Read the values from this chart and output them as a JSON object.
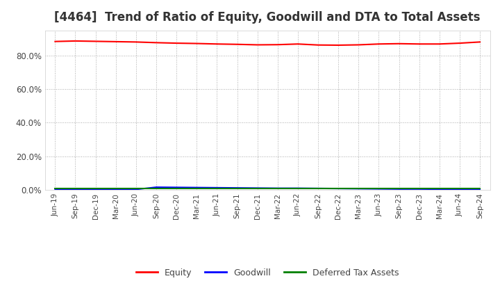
{
  "title": "[4464]  Trend of Ratio of Equity, Goodwill and DTA to Total Assets",
  "x_labels": [
    "Jun-19",
    "Sep-19",
    "Dec-19",
    "Mar-20",
    "Jun-20",
    "Sep-20",
    "Dec-20",
    "Mar-21",
    "Jun-21",
    "Sep-21",
    "Dec-21",
    "Mar-22",
    "Jun-22",
    "Sep-22",
    "Dec-22",
    "Mar-23",
    "Jun-23",
    "Sep-23",
    "Dec-23",
    "Mar-24",
    "Jun-24",
    "Sep-24"
  ],
  "equity": [
    88.5,
    88.8,
    88.6,
    88.4,
    88.2,
    87.8,
    87.5,
    87.3,
    87.0,
    86.8,
    86.5,
    86.6,
    87.0,
    86.4,
    86.3,
    86.5,
    87.0,
    87.2,
    87.0,
    87.0,
    87.5,
    88.2
  ],
  "goodwill": [
    0.2,
    0.2,
    0.2,
    0.2,
    0.2,
    1.5,
    1.4,
    1.3,
    1.2,
    1.1,
    1.0,
    0.9,
    0.9,
    0.8,
    0.7,
    0.6,
    0.5,
    0.4,
    0.4,
    0.3,
    0.3,
    0.2
  ],
  "dta": [
    0.9,
    0.9,
    0.9,
    0.9,
    0.9,
    0.9,
    0.9,
    0.9,
    0.9,
    0.9,
    0.9,
    0.9,
    0.9,
    0.9,
    0.9,
    0.9,
    0.9,
    0.9,
    0.9,
    0.9,
    0.9,
    0.9
  ],
  "equity_color": "#FF0000",
  "goodwill_color": "#0000FF",
  "dta_color": "#008000",
  "ylim": [
    0,
    95
  ],
  "yticks": [
    0,
    20,
    40,
    60,
    80
  ],
  "background_color": "#FFFFFF",
  "grid_color": "#AAAAAA",
  "title_fontsize": 12,
  "title_color": "#333333",
  "legend_labels": [
    "Equity",
    "Goodwill",
    "Deferred Tax Assets"
  ]
}
